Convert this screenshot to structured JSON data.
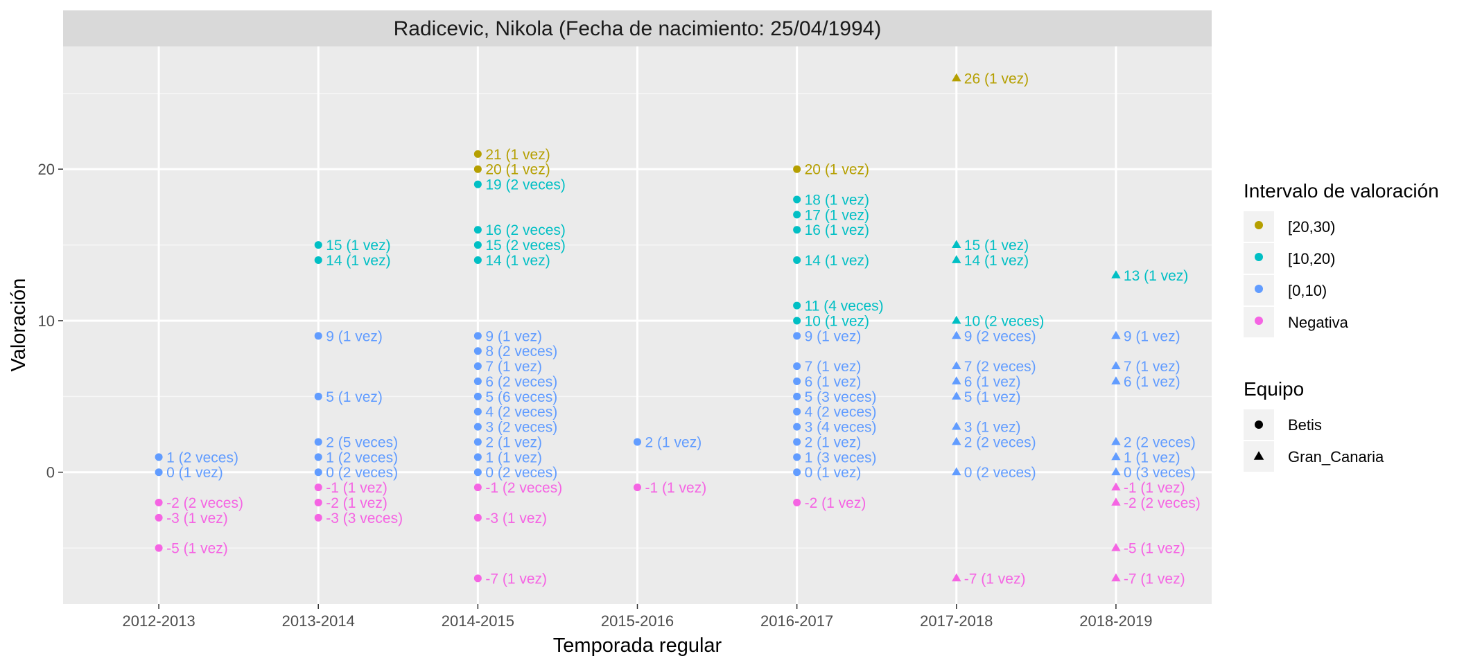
{
  "chart_data": {
    "type": "scatter",
    "title": "Radicevic, Nikola (Fecha de nacimiento: 25/04/1994)",
    "xlabel": "Temporada regular",
    "ylabel": "Valoración",
    "categories": [
      "2012-2013",
      "2013-2014",
      "2014-2015",
      "2015-2016",
      "2016-2017",
      "2017-2018",
      "2018-2019"
    ],
    "ylim": [
      -8.7,
      28.1
    ],
    "yticks": [
      0,
      10,
      20
    ],
    "grid": true,
    "legend_position": "right",
    "color_legend": {
      "title": "Intervalo de valoración",
      "items": [
        {
          "label": "[20,30)",
          "color": "#b59f00"
        },
        {
          "label": "[10,20)",
          "color": "#00bfc4"
        },
        {
          "label": "[0,10)",
          "color": "#619cff"
        },
        {
          "label": "Negativa",
          "color": "#f564e3"
        }
      ]
    },
    "shape_legend": {
      "title": "Equipo",
      "items": [
        {
          "label": "Betis",
          "shape": "circle"
        },
        {
          "label": "Gran_Canaria",
          "shape": "triangle"
        }
      ]
    },
    "colors": {
      "[20,30)": "#b59f00",
      "[10,20)": "#00bfc4",
      "[0,10)": "#619cff",
      "Negativa": "#f564e3"
    },
    "points": [
      {
        "season": "2012-2013",
        "y": 1,
        "label": "1 (2 veces)",
        "interval": "[0,10)",
        "team": "Betis"
      },
      {
        "season": "2012-2013",
        "y": 0,
        "label": "0 (1 vez)",
        "interval": "[0,10)",
        "team": "Betis"
      },
      {
        "season": "2012-2013",
        "y": -2,
        "label": "-2 (2 veces)",
        "interval": "Negativa",
        "team": "Betis"
      },
      {
        "season": "2012-2013",
        "y": -3,
        "label": "-3 (1 vez)",
        "interval": "Negativa",
        "team": "Betis"
      },
      {
        "season": "2012-2013",
        "y": -5,
        "label": "-5 (1 vez)",
        "interval": "Negativa",
        "team": "Betis"
      },
      {
        "season": "2013-2014",
        "y": 15,
        "label": "15 (1 vez)",
        "interval": "[10,20)",
        "team": "Betis"
      },
      {
        "season": "2013-2014",
        "y": 14,
        "label": "14 (1 vez)",
        "interval": "[10,20)",
        "team": "Betis"
      },
      {
        "season": "2013-2014",
        "y": 9,
        "label": "9 (1 vez)",
        "interval": "[0,10)",
        "team": "Betis"
      },
      {
        "season": "2013-2014",
        "y": 5,
        "label": "5 (1 vez)",
        "interval": "[0,10)",
        "team": "Betis"
      },
      {
        "season": "2013-2014",
        "y": 2,
        "label": "2 (5 veces)",
        "interval": "[0,10)",
        "team": "Betis"
      },
      {
        "season": "2013-2014",
        "y": 1,
        "label": "1 (2 veces)",
        "interval": "[0,10)",
        "team": "Betis"
      },
      {
        "season": "2013-2014",
        "y": 0,
        "label": "0 (2 veces)",
        "interval": "[0,10)",
        "team": "Betis"
      },
      {
        "season": "2013-2014",
        "y": -1,
        "label": "-1 (1 vez)",
        "interval": "Negativa",
        "team": "Betis"
      },
      {
        "season": "2013-2014",
        "y": -2,
        "label": "-2 (1 vez)",
        "interval": "Negativa",
        "team": "Betis"
      },
      {
        "season": "2013-2014",
        "y": -3,
        "label": "-3 (3 veces)",
        "interval": "Negativa",
        "team": "Betis"
      },
      {
        "season": "2014-2015",
        "y": 21,
        "label": "21 (1 vez)",
        "interval": "[20,30)",
        "team": "Betis"
      },
      {
        "season": "2014-2015",
        "y": 20,
        "label": "20 (1 vez)",
        "interval": "[20,30)",
        "team": "Betis"
      },
      {
        "season": "2014-2015",
        "y": 19,
        "label": "19 (2 veces)",
        "interval": "[10,20)",
        "team": "Betis"
      },
      {
        "season": "2014-2015",
        "y": 16,
        "label": "16 (2 veces)",
        "interval": "[10,20)",
        "team": "Betis"
      },
      {
        "season": "2014-2015",
        "y": 15,
        "label": "15 (2 veces)",
        "interval": "[10,20)",
        "team": "Betis"
      },
      {
        "season": "2014-2015",
        "y": 14,
        "label": "14 (1 vez)",
        "interval": "[10,20)",
        "team": "Betis"
      },
      {
        "season": "2014-2015",
        "y": 9,
        "label": "9 (1 vez)",
        "interval": "[0,10)",
        "team": "Betis"
      },
      {
        "season": "2014-2015",
        "y": 8,
        "label": "8 (2 veces)",
        "interval": "[0,10)",
        "team": "Betis"
      },
      {
        "season": "2014-2015",
        "y": 7,
        "label": "7 (1 vez)",
        "interval": "[0,10)",
        "team": "Betis"
      },
      {
        "season": "2014-2015",
        "y": 6,
        "label": "6 (2 veces)",
        "interval": "[0,10)",
        "team": "Betis"
      },
      {
        "season": "2014-2015",
        "y": 5,
        "label": "5 (6 veces)",
        "interval": "[0,10)",
        "team": "Betis"
      },
      {
        "season": "2014-2015",
        "y": 4,
        "label": "4 (2 veces)",
        "interval": "[0,10)",
        "team": "Betis"
      },
      {
        "season": "2014-2015",
        "y": 3,
        "label": "3 (2 veces)",
        "interval": "[0,10)",
        "team": "Betis"
      },
      {
        "season": "2014-2015",
        "y": 2,
        "label": "2 (1 vez)",
        "interval": "[0,10)",
        "team": "Betis"
      },
      {
        "season": "2014-2015",
        "y": 1,
        "label": "1 (1 vez)",
        "interval": "[0,10)",
        "team": "Betis"
      },
      {
        "season": "2014-2015",
        "y": 0,
        "label": "0 (2 veces)",
        "interval": "[0,10)",
        "team": "Betis"
      },
      {
        "season": "2014-2015",
        "y": -1,
        "label": "-1 (2 veces)",
        "interval": "Negativa",
        "team": "Betis"
      },
      {
        "season": "2014-2015",
        "y": -3,
        "label": "-3 (1 vez)",
        "interval": "Negativa",
        "team": "Betis"
      },
      {
        "season": "2014-2015",
        "y": -7,
        "label": "-7 (1 vez)",
        "interval": "Negativa",
        "team": "Betis"
      },
      {
        "season": "2015-2016",
        "y": 2,
        "label": "2 (1 vez)",
        "interval": "[0,10)",
        "team": "Betis"
      },
      {
        "season": "2015-2016",
        "y": -1,
        "label": "-1 (1 vez)",
        "interval": "Negativa",
        "team": "Betis"
      },
      {
        "season": "2016-2017",
        "y": 20,
        "label": "20 (1 vez)",
        "interval": "[20,30)",
        "team": "Betis"
      },
      {
        "season": "2016-2017",
        "y": 18,
        "label": "18 (1 vez)",
        "interval": "[10,20)",
        "team": "Betis"
      },
      {
        "season": "2016-2017",
        "y": 17,
        "label": "17 (1 vez)",
        "interval": "[10,20)",
        "team": "Betis"
      },
      {
        "season": "2016-2017",
        "y": 16,
        "label": "16 (1 vez)",
        "interval": "[10,20)",
        "team": "Betis"
      },
      {
        "season": "2016-2017",
        "y": 14,
        "label": "14 (1 vez)",
        "interval": "[10,20)",
        "team": "Betis"
      },
      {
        "season": "2016-2017",
        "y": 11,
        "label": "11 (4 veces)",
        "interval": "[10,20)",
        "team": "Betis"
      },
      {
        "season": "2016-2017",
        "y": 10,
        "label": "10 (1 vez)",
        "interval": "[10,20)",
        "team": "Betis"
      },
      {
        "season": "2016-2017",
        "y": 9,
        "label": "9 (1 vez)",
        "interval": "[0,10)",
        "team": "Betis"
      },
      {
        "season": "2016-2017",
        "y": 7,
        "label": "7 (1 vez)",
        "interval": "[0,10)",
        "team": "Betis"
      },
      {
        "season": "2016-2017",
        "y": 6,
        "label": "6 (1 vez)",
        "interval": "[0,10)",
        "team": "Betis"
      },
      {
        "season": "2016-2017",
        "y": 5,
        "label": "5 (3 veces)",
        "interval": "[0,10)",
        "team": "Betis"
      },
      {
        "season": "2016-2017",
        "y": 4,
        "label": "4 (2 veces)",
        "interval": "[0,10)",
        "team": "Betis"
      },
      {
        "season": "2016-2017",
        "y": 3,
        "label": "3 (4 veces)",
        "interval": "[0,10)",
        "team": "Betis"
      },
      {
        "season": "2016-2017",
        "y": 2,
        "label": "2 (1 vez)",
        "interval": "[0,10)",
        "team": "Betis"
      },
      {
        "season": "2016-2017",
        "y": 1,
        "label": "1 (3 veces)",
        "interval": "[0,10)",
        "team": "Betis"
      },
      {
        "season": "2016-2017",
        "y": 0,
        "label": "0 (1 vez)",
        "interval": "[0,10)",
        "team": "Betis"
      },
      {
        "season": "2016-2017",
        "y": -2,
        "label": "-2 (1 vez)",
        "interval": "Negativa",
        "team": "Betis"
      },
      {
        "season": "2017-2018",
        "y": 26,
        "label": "26 (1 vez)",
        "interval": "[20,30)",
        "team": "Gran_Canaria"
      },
      {
        "season": "2017-2018",
        "y": 15,
        "label": "15 (1 vez)",
        "interval": "[10,20)",
        "team": "Gran_Canaria"
      },
      {
        "season": "2017-2018",
        "y": 14,
        "label": "14 (1 vez)",
        "interval": "[10,20)",
        "team": "Gran_Canaria"
      },
      {
        "season": "2017-2018",
        "y": 10,
        "label": "10 (2 veces)",
        "interval": "[10,20)",
        "team": "Gran_Canaria"
      },
      {
        "season": "2017-2018",
        "y": 9,
        "label": "9 (2 veces)",
        "interval": "[0,10)",
        "team": "Gran_Canaria"
      },
      {
        "season": "2017-2018",
        "y": 7,
        "label": "7 (2 veces)",
        "interval": "[0,10)",
        "team": "Gran_Canaria"
      },
      {
        "season": "2017-2018",
        "y": 6,
        "label": "6 (1 vez)",
        "interval": "[0,10)",
        "team": "Gran_Canaria"
      },
      {
        "season": "2017-2018",
        "y": 5,
        "label": "5 (1 vez)",
        "interval": "[0,10)",
        "team": "Gran_Canaria"
      },
      {
        "season": "2017-2018",
        "y": 3,
        "label": "3 (1 vez)",
        "interval": "[0,10)",
        "team": "Gran_Canaria"
      },
      {
        "season": "2017-2018",
        "y": 2,
        "label": "2 (2 veces)",
        "interval": "[0,10)",
        "team": "Gran_Canaria"
      },
      {
        "season": "2017-2018",
        "y": 0,
        "label": "0 (2 veces)",
        "interval": "[0,10)",
        "team": "Gran_Canaria"
      },
      {
        "season": "2017-2018",
        "y": -7,
        "label": "-7 (1 vez)",
        "interval": "Negativa",
        "team": "Gran_Canaria"
      },
      {
        "season": "2018-2019",
        "y": 13,
        "label": "13 (1 vez)",
        "interval": "[10,20)",
        "team": "Gran_Canaria"
      },
      {
        "season": "2018-2019",
        "y": 9,
        "label": "9 (1 vez)",
        "interval": "[0,10)",
        "team": "Gran_Canaria"
      },
      {
        "season": "2018-2019",
        "y": 7,
        "label": "7 (1 vez)",
        "interval": "[0,10)",
        "team": "Gran_Canaria"
      },
      {
        "season": "2018-2019",
        "y": 6,
        "label": "6 (1 vez)",
        "interval": "[0,10)",
        "team": "Gran_Canaria"
      },
      {
        "season": "2018-2019",
        "y": 2,
        "label": "2 (2 veces)",
        "interval": "[0,10)",
        "team": "Gran_Canaria"
      },
      {
        "season": "2018-2019",
        "y": 1,
        "label": "1 (1 vez)",
        "interval": "[0,10)",
        "team": "Gran_Canaria"
      },
      {
        "season": "2018-2019",
        "y": 0,
        "label": "0 (3 veces)",
        "interval": "[0,10)",
        "team": "Gran_Canaria"
      },
      {
        "season": "2018-2019",
        "y": -1,
        "label": "-1 (1 vez)",
        "interval": "Negativa",
        "team": "Gran_Canaria"
      },
      {
        "season": "2018-2019",
        "y": -2,
        "label": "-2 (2 veces)",
        "interval": "Negativa",
        "team": "Gran_Canaria"
      },
      {
        "season": "2018-2019",
        "y": -5,
        "label": "-5 (1 vez)",
        "interval": "Negativa",
        "team": "Gran_Canaria"
      },
      {
        "season": "2018-2019",
        "y": -7,
        "label": "-7 (1 vez)",
        "interval": "Negativa",
        "team": "Gran_Canaria"
      }
    ]
  }
}
